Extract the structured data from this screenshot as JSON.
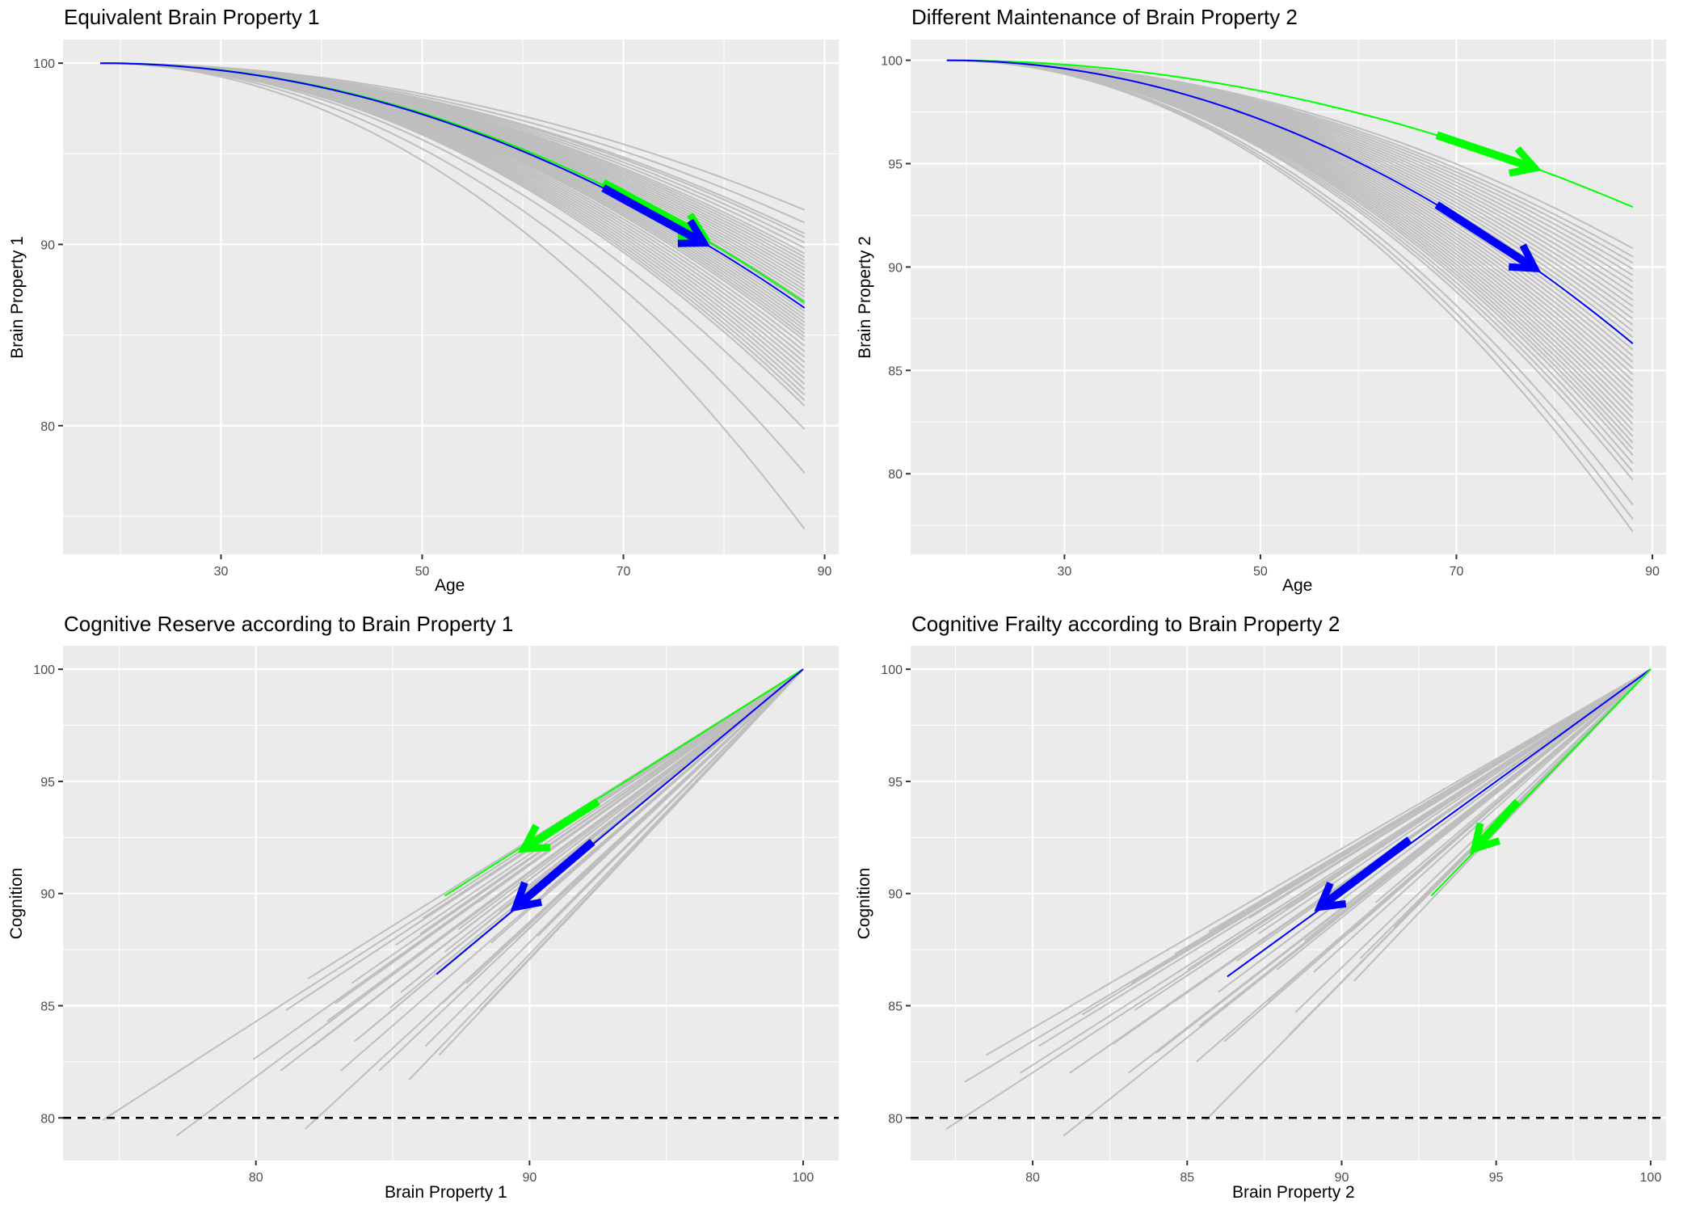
{
  "chart_data": [
    {
      "id": "p1",
      "type": "line",
      "title": "Equivalent Brain Property 1",
      "xlabel": "Age",
      "ylabel": "Brain Property 1",
      "xlim": [
        14.3,
        91.4
      ],
      "ylim": [
        72.9,
        101.3
      ],
      "xticks": [
        30,
        50,
        70,
        90
      ],
      "yticks": [
        80,
        90,
        100
      ],
      "x_start": 18,
      "x_end": 88,
      "y_start": 100,
      "curve_model": "quadratic decline from (18,100) to end value at age 88",
      "grey_end_values": [
        91.9,
        91.2,
        90.6,
        90.4,
        90.1,
        89.8,
        89.5,
        89.3,
        89.1,
        88.9,
        88.7,
        88.5,
        88.3,
        88.1,
        87.9,
        87.7,
        87.5,
        87.3,
        87.1,
        86.9,
        86.7,
        86.5,
        86.3,
        86.1,
        85.9,
        85.7,
        85.5,
        85.3,
        85.1,
        84.9,
        84.7,
        84.4,
        84.1,
        83.8,
        83.5,
        83.2,
        82.9,
        82.6,
        82.3,
        82.0,
        81.7,
        81.4,
        81.1,
        79.8,
        77.4,
        74.3
      ],
      "highlight": [
        {
          "name": "green",
          "color": "#00ff00",
          "end_value": 86.8,
          "arrow": {
            "from_x": 68,
            "to_x": 78
          }
        },
        {
          "name": "blue",
          "color": "#0000ff",
          "end_value": 86.5,
          "arrow": {
            "from_x": 68,
            "to_x": 78
          }
        }
      ]
    },
    {
      "id": "p2",
      "type": "line",
      "title": "Different Maintenance of Brain Property 2",
      "xlabel": "Age",
      "ylabel": "Brain Property 2",
      "xlim": [
        14.3,
        91.4
      ],
      "ylim": [
        76.1,
        101.0
      ],
      "xticks": [
        30,
        50,
        70,
        90
      ],
      "yticks": [
        80,
        85,
        90,
        95,
        100
      ],
      "x_start": 18,
      "x_end": 88,
      "y_start": 100,
      "curve_model": "quadratic decline from (18,100) to end value at age 88",
      "grey_end_values": [
        90.9,
        90.5,
        90.2,
        89.9,
        89.6,
        89.3,
        89.0,
        88.7,
        88.4,
        88.1,
        87.8,
        87.5,
        87.2,
        86.9,
        86.6,
        86.3,
        86.0,
        85.7,
        85.4,
        85.1,
        84.8,
        84.5,
        84.2,
        83.9,
        83.6,
        83.3,
        83.0,
        82.7,
        82.4,
        82.1,
        81.8,
        81.5,
        81.2,
        80.9,
        80.5,
        80.1,
        79.7,
        78.5,
        77.8,
        77.2
      ],
      "highlight": [
        {
          "name": "green",
          "color": "#00ff00",
          "end_value": 92.9,
          "arrow": {
            "from_x": 68,
            "to_x": 78
          }
        },
        {
          "name": "blue",
          "color": "#0000ff",
          "end_value": 86.3,
          "arrow": {
            "from_x": 68,
            "to_x": 78
          }
        }
      ]
    },
    {
      "id": "p3",
      "type": "line",
      "title": "Cognitive Reserve according to Brain Property 1",
      "xlabel": "Brain Property 1",
      "ylabel": "Cognition",
      "xlim": [
        72.95,
        101.3
      ],
      "ylim": [
        78.1,
        101.05
      ],
      "xticks": [
        80,
        90,
        100
      ],
      "yticks": [
        80,
        85,
        90,
        95,
        100
      ],
      "origin": [
        100,
        100
      ],
      "hline": {
        "y": 80,
        "style": "dashed",
        "color": "#000000"
      },
      "grey_segments_end": [
        [
          74.4,
          79.9
        ],
        [
          77.1,
          79.2
        ],
        [
          81.8,
          79.5
        ],
        [
          79.9,
          82.6
        ],
        [
          80.9,
          82.1
        ],
        [
          82.1,
          83.2
        ],
        [
          83.1,
          82.1
        ],
        [
          84.5,
          82.1
        ],
        [
          85.6,
          81.7
        ],
        [
          81.1,
          84.8
        ],
        [
          82.9,
          85.1
        ],
        [
          84.1,
          83.9
        ],
        [
          82.6,
          84.3
        ],
        [
          83.6,
          83.4
        ],
        [
          86.2,
          83.2
        ],
        [
          86.7,
          82.8
        ],
        [
          84.9,
          84.9
        ],
        [
          81.9,
          86.2
        ],
        [
          83.5,
          86.0
        ],
        [
          84.4,
          86.4
        ],
        [
          85.3,
          85.6
        ],
        [
          85.9,
          86.2
        ],
        [
          86.8,
          85.1
        ],
        [
          87.7,
          86.0
        ],
        [
          88.2,
          84.8
        ],
        [
          84.2,
          87.3
        ],
        [
          85.1,
          87.7
        ],
        [
          86.0,
          88.2
        ],
        [
          86.9,
          87.4
        ],
        [
          87.4,
          88.4
        ],
        [
          88.6,
          87.8
        ],
        [
          89.5,
          87.9
        ],
        [
          90.3,
          88.1
        ],
        [
          91.2,
          88.6
        ],
        [
          86.1,
          88.9
        ],
        [
          87.3,
          89.3
        ],
        [
          88.1,
          89.6
        ],
        [
          88.9,
          89.2
        ],
        [
          89.7,
          89.9
        ],
        [
          90.6,
          90.1
        ],
        [
          91.5,
          90.3
        ],
        [
          92.1,
          89.8
        ]
      ],
      "highlight": [
        {
          "name": "green",
          "color": "#00ff00",
          "end": [
            86.9,
            89.9
          ],
          "arrow": {
            "from": [
              92.5,
              94.1
            ],
            "to": [
              89.8,
              92.0
            ]
          }
        },
        {
          "name": "blue",
          "color": "#0000ff",
          "end": [
            86.6,
            86.4
          ],
          "arrow": {
            "from": [
              92.3,
              92.3
            ],
            "to": [
              89.5,
              89.4
            ]
          }
        }
      ]
    },
    {
      "id": "p4",
      "type": "line",
      "title": "Cognitive Frailty according to Brain Property 2",
      "xlabel": "Brain Property 2",
      "ylabel": "Cognition",
      "xlim": [
        76.05,
        100.5
      ],
      "ylim": [
        78.1,
        101.05
      ],
      "xticks": [
        80,
        85,
        90,
        95,
        100
      ],
      "yticks": [
        80,
        85,
        90,
        95,
        100
      ],
      "origin": [
        100,
        100
      ],
      "hline": {
        "y": 80,
        "style": "dashed",
        "color": "#000000"
      },
      "grey_segments_end": [
        [
          77.2,
          79.5
        ],
        [
          81.0,
          79.2
        ],
        [
          85.6,
          79.9
        ],
        [
          77.8,
          81.6
        ],
        [
          79.6,
          82.0
        ],
        [
          81.2,
          82.0
        ],
        [
          83.1,
          82.0
        ],
        [
          85.3,
          82.5
        ],
        [
          78.5,
          82.8
        ],
        [
          80.2,
          83.2
        ],
        [
          82.6,
          83.3
        ],
        [
          84.0,
          82.9
        ],
        [
          86.2,
          83.4
        ],
        [
          88.3,
          83.7
        ],
        [
          85.4,
          84.1
        ],
        [
          81.6,
          84.6
        ],
        [
          83.3,
          84.8
        ],
        [
          84.6,
          85.2
        ],
        [
          86.0,
          85.6
        ],
        [
          87.6,
          85.2
        ],
        [
          88.5,
          84.7
        ],
        [
          90.4,
          86.1
        ],
        [
          83.2,
          86.0
        ],
        [
          85.0,
          86.6
        ],
        [
          86.6,
          87.0
        ],
        [
          87.9,
          86.6
        ],
        [
          89.1,
          86.5
        ],
        [
          90.6,
          87.1
        ],
        [
          84.6,
          87.3
        ],
        [
          86.0,
          88.5
        ],
        [
          87.3,
          88.2
        ],
        [
          88.8,
          87.9
        ],
        [
          90.3,
          88.3
        ],
        [
          91.7,
          88.5
        ],
        [
          85.7,
          88.3
        ],
        [
          87.0,
          88.9
        ],
        [
          88.2,
          89.3
        ],
        [
          89.7,
          89.0
        ],
        [
          91.1,
          89.6
        ],
        [
          92.3,
          89.4
        ]
      ],
      "highlight": [
        {
          "name": "blue",
          "color": "#0000ff",
          "end": [
            86.3,
            86.3
          ],
          "arrow": {
            "from": [
              92.2,
              92.4
            ],
            "to": [
              89.3,
              89.4
            ]
          }
        },
        {
          "name": "green",
          "color": "#00ff00",
          "end": [
            92.9,
            89.9
          ],
          "arrow": {
            "from": [
              95.7,
              94.1
            ],
            "to": [
              94.3,
              92.0
            ]
          }
        }
      ]
    }
  ]
}
